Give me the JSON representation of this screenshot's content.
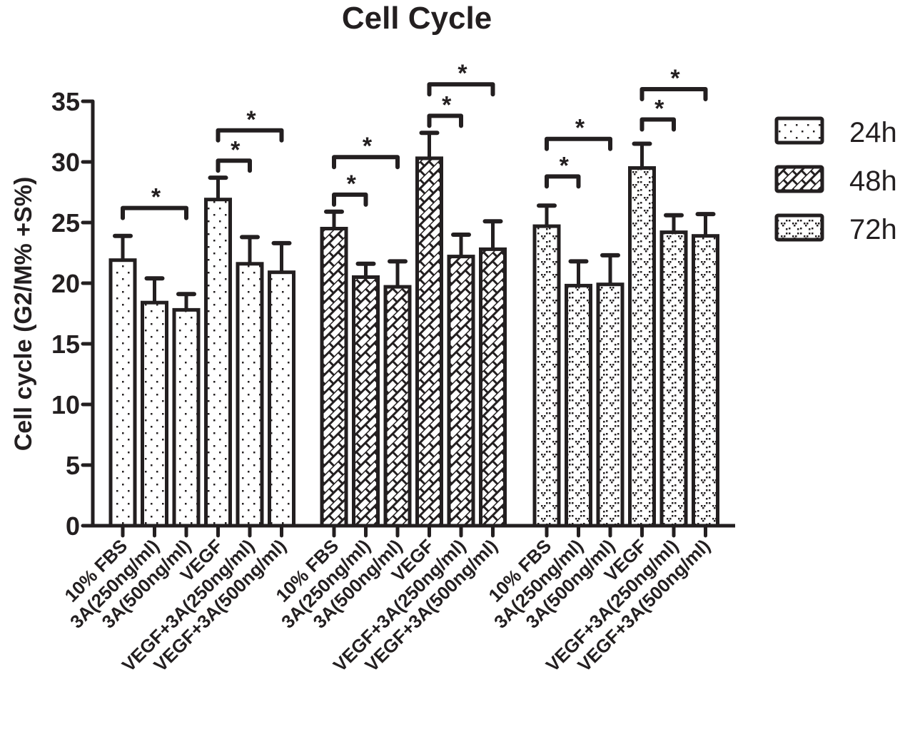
{
  "chart_data": {
    "type": "bar",
    "title": "Cell Cycle",
    "xlabel": "",
    "ylabel": "Cell cycle (G2/M% +S%)",
    "ylim": [
      0,
      35
    ],
    "yticks": [
      0,
      5,
      10,
      15,
      20,
      25,
      30,
      35
    ],
    "grid": false,
    "legend_position": "right",
    "categories": [
      "10% FBS",
      "3A(250ng/ml)",
      "3A(500ng/ml)",
      "VEGF",
      "VEGF+3A(250ng/ml)",
      "VEGF+3A(500ng/ml)"
    ],
    "series": [
      {
        "name": "24h",
        "pattern": "dots",
        "values": [
          21.9,
          18.4,
          17.8,
          26.9,
          21.6,
          20.9
        ],
        "errors": [
          2.0,
          2.0,
          1.3,
          1.8,
          2.2,
          2.4
        ]
      },
      {
        "name": "48h",
        "pattern": "brick-hatch",
        "values": [
          24.5,
          20.5,
          19.7,
          30.3,
          22.2,
          22.8
        ],
        "errors": [
          1.4,
          1.1,
          2.1,
          2.1,
          1.8,
          2.3
        ]
      },
      {
        "name": "72h",
        "pattern": "speckle",
        "values": [
          24.7,
          19.8,
          19.9,
          29.5,
          24.2,
          23.9
        ],
        "errors": [
          1.7,
          2.0,
          2.4,
          2.0,
          1.4,
          1.8
        ]
      }
    ],
    "annotations": [
      {
        "series": 0,
        "from": 0,
        "to": 2,
        "label": "*",
        "y": 26.2
      },
      {
        "series": 0,
        "from": 3,
        "to": 4,
        "label": "*",
        "y": 30.1
      },
      {
        "series": 0,
        "from": 3,
        "to": 5,
        "label": "*",
        "y": 32.6
      },
      {
        "series": 1,
        "from": 0,
        "to": 1,
        "label": "*",
        "y": 27.3
      },
      {
        "series": 1,
        "from": 0,
        "to": 2,
        "label": "*",
        "y": 30.4
      },
      {
        "series": 1,
        "from": 3,
        "to": 4,
        "label": "*",
        "y": 33.8
      },
      {
        "series": 1,
        "from": 3,
        "to": 5,
        "label": "*",
        "y": 36.4
      },
      {
        "series": 2,
        "from": 0,
        "to": 1,
        "label": "*",
        "y": 28.8
      },
      {
        "series": 2,
        "from": 0,
        "to": 2,
        "label": "*",
        "y": 31.9
      },
      {
        "series": 2,
        "from": 3,
        "to": 4,
        "label": "*",
        "y": 33.5
      },
      {
        "series": 2,
        "from": 3,
        "to": 5,
        "label": "*",
        "y": 36.0
      }
    ]
  },
  "colors": {
    "ink": "#231f20",
    "background": "#ffffff"
  }
}
